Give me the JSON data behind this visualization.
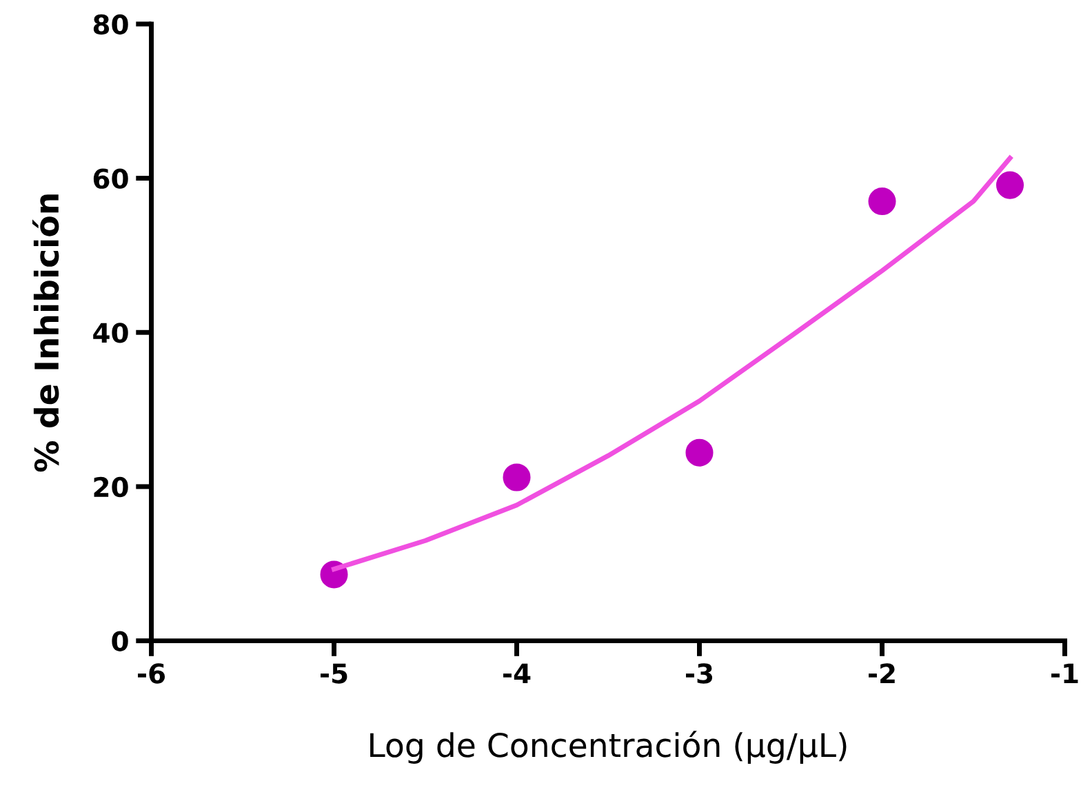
{
  "chart_data": {
    "type": "scatter",
    "xlabel": "Log de Concentración (µg/µL)",
    "ylabel": "% de Inhibición",
    "x": [
      -5,
      -4,
      -3,
      -2,
      -1.3
    ],
    "series": [
      {
        "color": "#c000c0",
        "values": [
          8.6,
          21.2,
          24.4,
          57.0,
          59.1
        ],
        "marker": "circle"
      },
      {
        "type": "line",
        "color": "#f050e0",
        "x": [
          -5,
          -4.5,
          -4,
          -3.5,
          -3,
          -2.5,
          -2,
          -1.5,
          -1.3
        ],
        "values": [
          9.3,
          13,
          17.6,
          24,
          31.1,
          39.5,
          48,
          57,
          62.6
        ],
        "marker": "none",
        "line_style": "solid"
      }
    ],
    "xlim": [
      -6,
      -1
    ],
    "xticks": [
      -6,
      -5,
      -4,
      -3,
      -2,
      -1
    ],
    "ylim": [
      0,
      80
    ],
    "yticks": [
      0,
      20,
      40,
      60,
      80
    ],
    "grid": false,
    "legend": false
  }
}
